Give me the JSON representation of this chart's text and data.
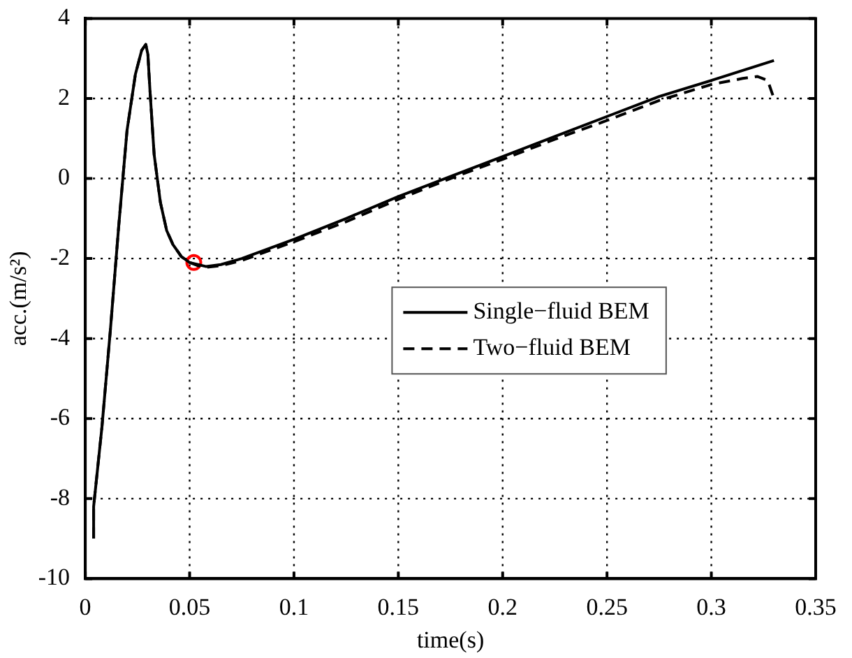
{
  "chart_data": {
    "type": "line",
    "xlabel": "time(s)",
    "ylabel": "acc.(m/s²)",
    "xlim": [
      0,
      0.35
    ],
    "xticks": [
      0,
      0.05,
      0.1,
      0.15,
      0.2,
      0.25,
      0.3,
      0.35
    ],
    "ylim": [
      -10,
      4
    ],
    "yticks": [
      -10,
      -8,
      -6,
      -4,
      -2,
      0,
      2,
      4
    ],
    "grid": true,
    "legend": "center",
    "marker": "none",
    "series": [
      {
        "name": "Single−fluid BEM",
        "color": "#000000",
        "line_style": "solid",
        "x": [
          0.004,
          0.004,
          0.008,
          0.012,
          0.016,
          0.02,
          0.024,
          0.027,
          0.029,
          0.03,
          0.031,
          0.033,
          0.036,
          0.039,
          0.042,
          0.046,
          0.05,
          0.054,
          0.058,
          0.065,
          0.075,
          0.1,
          0.125,
          0.15,
          0.175,
          0.2,
          0.225,
          0.25,
          0.275,
          0.3,
          0.33
        ],
        "values": [
          -9,
          -8.2,
          -6.2,
          -3.8,
          -1.2,
          1.2,
          2.6,
          3.2,
          3.35,
          3.1,
          2.2,
          0.6,
          -0.6,
          -1.3,
          -1.65,
          -1.95,
          -2.1,
          -2.15,
          -2.2,
          -2.15,
          -2,
          -1.52,
          -1,
          -0.45,
          0.05,
          0.55,
          1.05,
          1.55,
          2.05,
          2.45,
          2.95
        ]
      },
      {
        "name": "Two−fluid BEM",
        "color": "#000000",
        "line_style": "dashed",
        "x": [
          0.004,
          0.004,
          0.008,
          0.012,
          0.016,
          0.02,
          0.024,
          0.027,
          0.029,
          0.03,
          0.031,
          0.033,
          0.036,
          0.039,
          0.042,
          0.046,
          0.05,
          0.054,
          0.058,
          0.065,
          0.075,
          0.1,
          0.125,
          0.15,
          0.175,
          0.2,
          0.225,
          0.25,
          0.275,
          0.3,
          0.315,
          0.322,
          0.327,
          0.33
        ],
        "values": [
          -9,
          -8.2,
          -6.2,
          -3.8,
          -1.2,
          1.2,
          2.6,
          3.2,
          3.35,
          3.1,
          2.2,
          0.6,
          -0.6,
          -1.3,
          -1.65,
          -1.95,
          -2.1,
          -2.18,
          -2.22,
          -2.18,
          -2.05,
          -1.58,
          -1.08,
          -0.52,
          0,
          0.48,
          0.98,
          1.45,
          1.95,
          2.35,
          2.5,
          2.55,
          2.45,
          2.0
        ]
      },
      {
        "type": "scatter",
        "color": "#ff0000",
        "marker": "circle",
        "x": [
          0.052
        ],
        "values": [
          -2.1
        ]
      }
    ]
  }
}
